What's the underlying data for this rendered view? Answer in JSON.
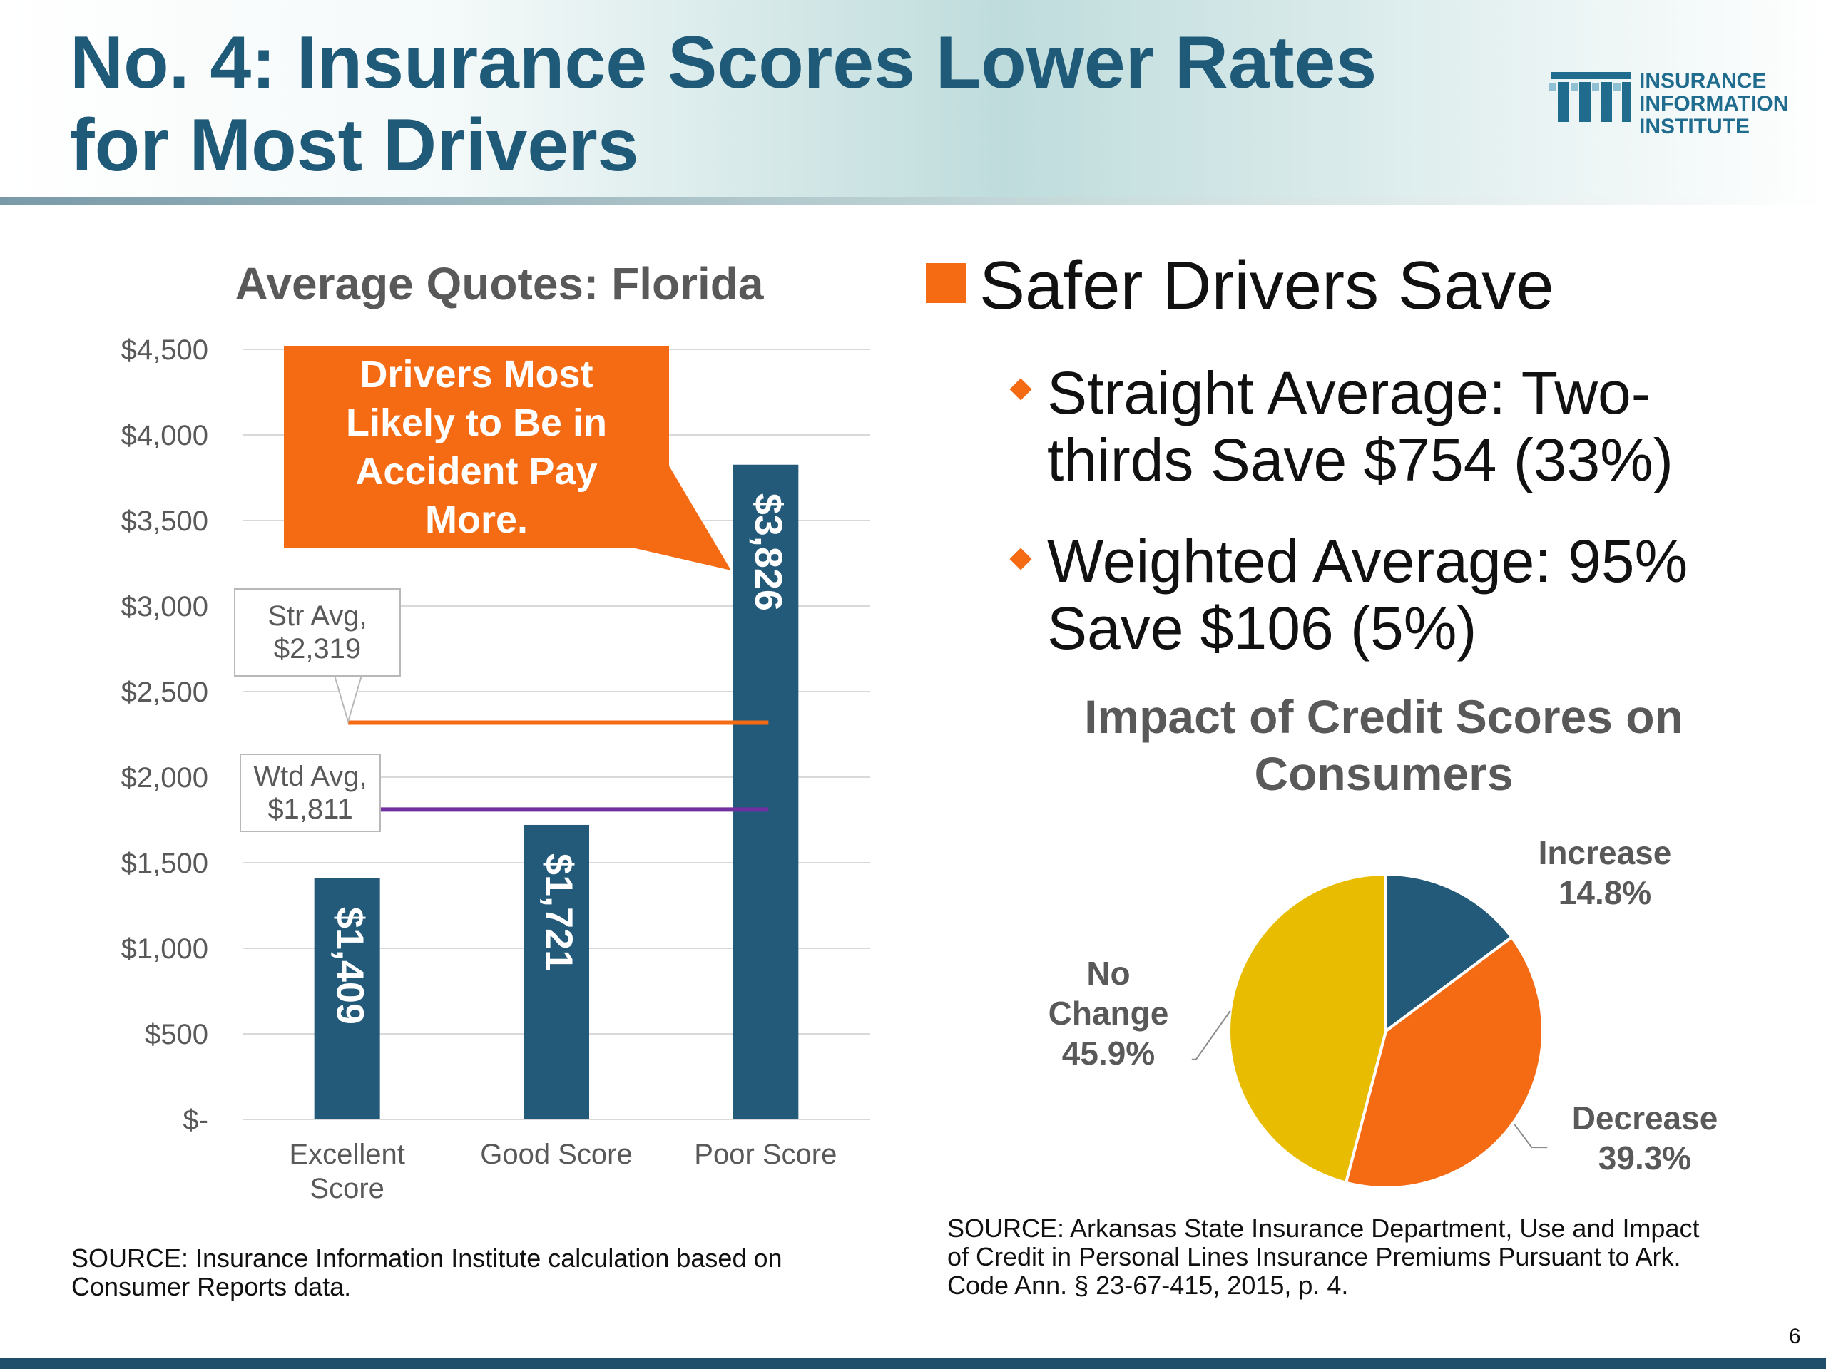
{
  "slide": {
    "title_line1": "No. 4: Insurance Scores Lower Rates",
    "title_line2": "for Most Drivers",
    "page_number": "6"
  },
  "logo": {
    "line1": "INSURANCE",
    "line2": "INFORMATION",
    "line3": "INSTITUTE"
  },
  "callout": "Drivers Most Likely to Be in Accident Pay More.",
  "averages": {
    "straight": {
      "label_line1": "Str Avg,",
      "label_line2": "$2,319",
      "value": 2319,
      "color": "#f56b14"
    },
    "weighted": {
      "label_line1": "Wtd Avg,",
      "label_line2": "$1,811",
      "value": 1811,
      "color": "#7030a0"
    }
  },
  "bullets": {
    "main": "Safer Drivers Save",
    "sub1": "Straight Average: Two-thirds Save $754 (33%)",
    "sub2": "Weighted Average: 95% Save $106 (5%)"
  },
  "sources": {
    "left": "SOURCE: Insurance Information Institute calculation based on Consumer Reports data.",
    "right": "SOURCE: Arkansas State Insurance Department, Use and Impact of Credit in Personal Lines Insurance Premiums Pursuant to Ark. Code Ann. § 23-67-415, 2015, p. 4."
  },
  "chart_data": [
    {
      "type": "bar",
      "title": "Average Quotes: Florida",
      "categories": [
        "Excellent Score",
        "Good Score",
        "Poor Score"
      ],
      "values": [
        1409,
        1721,
        3826
      ],
      "value_labels": [
        "$1,409",
        "$1,721",
        "$3,826"
      ],
      "ylim": [
        0,
        4500
      ],
      "ytick_values": [
        0,
        500,
        1000,
        1500,
        2000,
        2500,
        3000,
        3500,
        4000,
        4500
      ],
      "ytick_labels": [
        "$-",
        "$500",
        "$1,000",
        "$1,500",
        "$2,000",
        "$2,500",
        "$3,000",
        "$3,500",
        "$4,000",
        "$4,500"
      ],
      "grid": true,
      "bar_color": "#235a7a"
    },
    {
      "type": "pie",
      "title": "Impact of Credit Scores on Consumers",
      "slices": [
        {
          "label": "Increase",
          "value": 14.8,
          "value_label": "14.8%",
          "color": "#235a7a"
        },
        {
          "label": "Decrease",
          "value": 39.3,
          "value_label": "39.3%",
          "color": "#f56b14"
        },
        {
          "label": "No Change",
          "value": 45.9,
          "value_label": "45.9%",
          "color": "#e8bc00"
        }
      ]
    }
  ]
}
